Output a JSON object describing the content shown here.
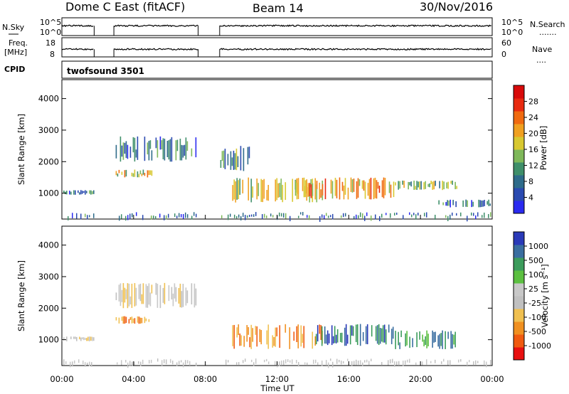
{
  "header": {
    "station": "Dome C East (fitACF)",
    "beam": "Beam 14",
    "date": "30/Nov/2016",
    "cpid_label": "CPID",
    "cpid_value": "twofsound 3501"
  },
  "aux_panels": {
    "nsky_label": "N.Sky",
    "nsearch_label": "N.Search",
    "nsearch_dots": ".......",
    "noise_ticks": [
      "10^5",
      "10^0"
    ],
    "freq_label_1": "Freq.",
    "freq_label_2": "[MHz]",
    "freq_ticks": [
      "18",
      "8"
    ],
    "nave_label": "Nave",
    "nave_dots": "....",
    "nave_ticks": [
      "60",
      "0"
    ]
  },
  "colors": {
    "power_scale": [
      "#2a2af0",
      "#2a4ab0",
      "#2e6b8a",
      "#3f8f6a",
      "#7fb85a",
      "#d8c830",
      "#f0a020",
      "#f06a10",
      "#e82a10",
      "#d80a0a"
    ],
    "velocity_scale": [
      "#e81010",
      "#f05a10",
      "#f09020",
      "#f0c050",
      "#c0c0c0",
      "#c8c8c8",
      "#5cc040",
      "#3c9c5c",
      "#3a6ea0",
      "#2a3ab8"
    ],
    "nsky_trace": "#000000",
    "freq_trace": "#000000"
  },
  "chart_data": [
    {
      "type": "heatmap",
      "name": "power",
      "ylabel": "Slant Range [km]",
      "colorbar_label": "Power [dB]",
      "colorbar_ticks": [
        "4",
        "8",
        "12",
        "16",
        "20",
        "24",
        "28"
      ],
      "colorbar_range": [
        0,
        32
      ],
      "yticks": [
        "1000",
        "2000",
        "3000",
        "4000"
      ],
      "ylim": [
        180,
        4600
      ],
      "xlim_hours": [
        0,
        24
      ],
      "echo_regions": [
        {
          "start": "00:00",
          "end": "01:45",
          "range_km": [
            950,
            1100
          ],
          "power_db": 8
        },
        {
          "start": "03:00",
          "end": "05:00",
          "range_km": [
            1500,
            1750
          ],
          "power_db": 18
        },
        {
          "start": "03:00",
          "end": "07:30",
          "range_km": [
            2000,
            2800
          ],
          "power_db": 8
        },
        {
          "start": "08:50",
          "end": "10:30",
          "range_km": [
            1700,
            2500
          ],
          "power_db": 10
        },
        {
          "start": "09:30",
          "end": "14:30",
          "range_km": [
            700,
            1500
          ],
          "power_db": 18
        },
        {
          "start": "13:00",
          "end": "18:30",
          "range_km": [
            800,
            1500
          ],
          "power_db": 20
        },
        {
          "start": "18:30",
          "end": "22:00",
          "range_km": [
            1100,
            1400
          ],
          "power_db": 14
        },
        {
          "start": "21:00",
          "end": "24:00",
          "range_km": [
            550,
            800
          ],
          "power_db": 8
        }
      ]
    },
    {
      "type": "heatmap",
      "name": "velocity",
      "ylabel": "Slant Range [km]",
      "xlabel": "Time UT",
      "colorbar_label": "Velocity [m s⁻¹]",
      "colorbar_ticks": [
        "1000",
        "500",
        "100",
        "25",
        "-25",
        "-100",
        "-500",
        "-1000"
      ],
      "yticks": [
        "1000",
        "2000",
        "3000",
        "4000"
      ],
      "xticks": [
        "00:00",
        "04:00",
        "08:00",
        "12:00",
        "16:00",
        "20:00",
        "00:00"
      ],
      "ylim": [
        180,
        4600
      ],
      "xlim_hours": [
        0,
        24
      ],
      "echo_regions": [
        {
          "start": "00:00",
          "end": "01:45",
          "range_km": [
            950,
            1100
          ],
          "velocity": 0
        },
        {
          "start": "03:00",
          "end": "05:00",
          "range_km": [
            1500,
            1750
          ],
          "velocity": -200
        },
        {
          "start": "03:00",
          "end": "07:30",
          "range_km": [
            2000,
            2800
          ],
          "velocity": 0
        },
        {
          "start": "09:30",
          "end": "14:30",
          "range_km": [
            700,
            1500
          ],
          "velocity": -150
        },
        {
          "start": "14:00",
          "end": "18:30",
          "range_km": [
            800,
            1500
          ],
          "velocity": 300
        },
        {
          "start": "18:30",
          "end": "22:00",
          "range_km": [
            700,
            1300
          ],
          "velocity": 50
        }
      ]
    }
  ]
}
